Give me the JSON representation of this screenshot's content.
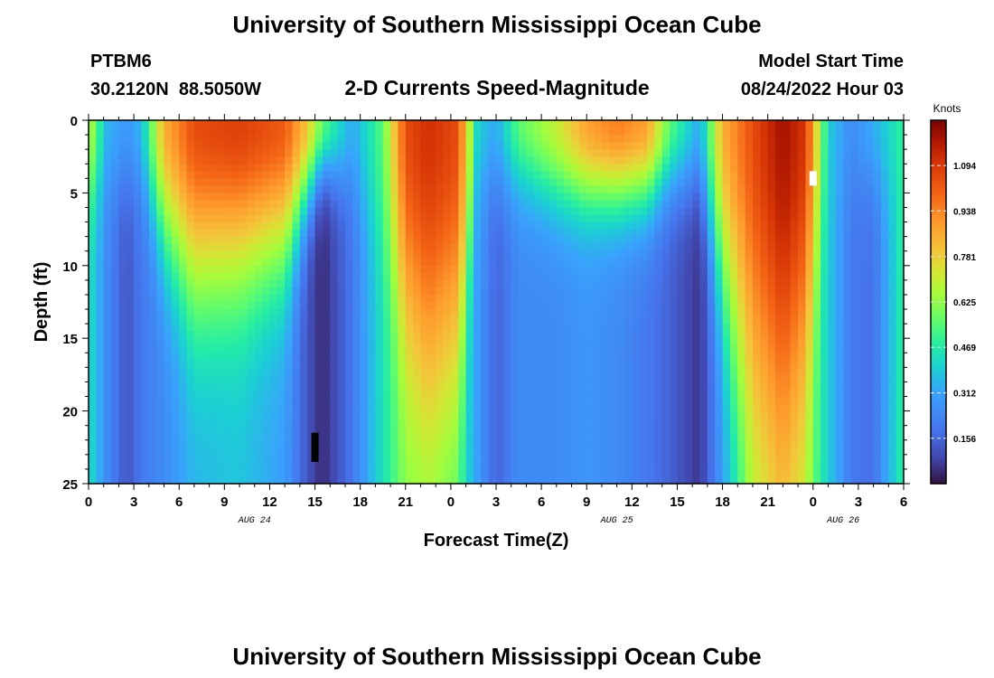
{
  "chart_data": {
    "type": "heatmap",
    "title": "University of Southern Mississippi Ocean Cube",
    "footer_title": "University of Southern Mississippi Ocean Cube",
    "station_id": "PTBM6",
    "station_coords": "30.2120N  88.5050W",
    "subtitle": "2-D Currents Speed-Magnitude",
    "start_time_label": "Model Start Time",
    "start_time_value": "08/24/2022 Hour 03",
    "xlabel": "Forecast Time(Z)",
    "ylabel": "Depth (ft)",
    "x_range_hours": [
      0,
      54
    ],
    "y_range_ft": [
      0,
      25
    ],
    "x_tick_labels": [
      "0",
      "3",
      "6",
      "9",
      "12",
      "15",
      "18",
      "21",
      "0",
      "3",
      "6",
      "9",
      "12",
      "15",
      "18",
      "21",
      "0",
      "3",
      "6"
    ],
    "y_tick_labels": [
      "0",
      "5",
      "10",
      "15",
      "20",
      "25"
    ],
    "date_labels": [
      {
        "text": "AUG 24",
        "hour": 11
      },
      {
        "text": "AUG 25",
        "hour": 35
      },
      {
        "text": "AUG 26",
        "hour": 50
      }
    ],
    "colorbar": {
      "unit": "Knots",
      "min": 0.0,
      "max": 1.25,
      "tick_values": [
        0.156,
        0.312,
        0.469,
        0.625,
        0.781,
        0.938,
        1.094
      ],
      "tick_labels": [
        "0.156",
        "0.312",
        "0.469",
        "0.625",
        "0.781",
        "0.938",
        "1.094"
      ]
    },
    "speed_field": {
      "x_hours": [
        0,
        1.2,
        2.5,
        3.5,
        5,
        7,
        10,
        13,
        14.5,
        15.5,
        17.5,
        19.5,
        21,
        22.5,
        24.5,
        25.8,
        27,
        28.5,
        31,
        33,
        35,
        37,
        38.5,
        40.5,
        42,
        44,
        46,
        47.5,
        49,
        50.5,
        52,
        54
      ],
      "surface_knots": [
        0.7,
        0.35,
        0.28,
        0.35,
        0.85,
        1.05,
        1.08,
        1.02,
        0.8,
        0.55,
        0.32,
        0.55,
        1.05,
        1.12,
        1.05,
        0.4,
        0.32,
        0.55,
        0.7,
        0.88,
        0.95,
        0.88,
        0.55,
        0.32,
        0.85,
        1.05,
        1.2,
        1.1,
        0.4,
        0.25,
        0.33,
        0.5
      ],
      "bottom_knots": [
        0.45,
        0.25,
        0.12,
        0.2,
        0.25,
        0.35,
        0.38,
        0.3,
        0.12,
        0.04,
        0.2,
        0.45,
        0.6,
        0.55,
        0.5,
        0.3,
        0.15,
        0.25,
        0.25,
        0.28,
        0.25,
        0.2,
        0.15,
        0.06,
        0.3,
        0.6,
        0.7,
        0.65,
        0.4,
        0.2,
        0.18,
        0.5
      ],
      "depth_decay_ft": [
        6,
        5,
        5,
        5,
        9,
        12,
        11,
        10,
        6,
        4,
        5,
        9,
        15,
        20,
        18,
        5,
        5,
        5,
        6,
        6,
        6,
        6,
        5,
        5,
        12,
        20,
        22,
        18,
        6,
        5,
        5,
        6
      ],
      "missing_cells": [
        {
          "hour": 15,
          "depth_top": 21.5,
          "depth_bottom": 23.5,
          "color": "#000000"
        },
        {
          "hour": 48,
          "depth_top": 3.5,
          "depth_bottom": 4.5,
          "color": "#ffffff"
        }
      ]
    }
  }
}
